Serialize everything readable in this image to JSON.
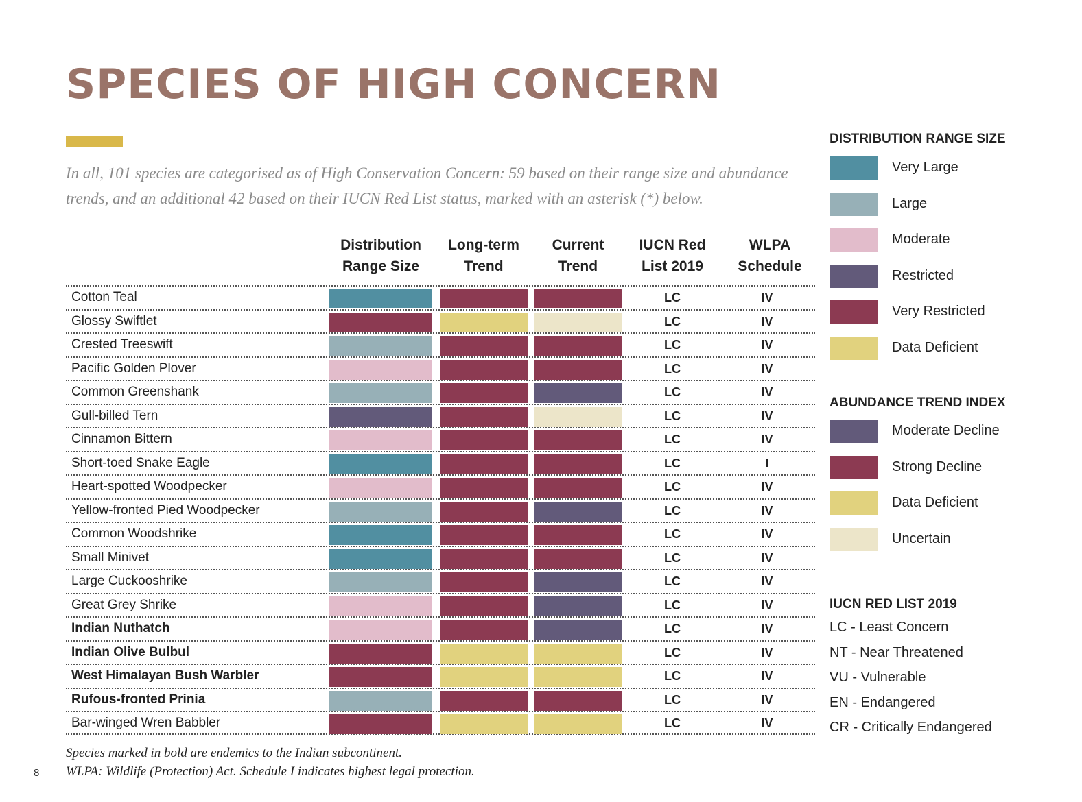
{
  "title": "SPECIES OF HIGH CONCERN",
  "intro_line1": "In all, 101 species are categorised as of High Conservation Concern: 59 based on their range size and abundance",
  "intro_line2": "trends, and an additional 42 based on their IUCN Red List status, marked with an asterisk (*) below.",
  "colors": {
    "very_large": "#518fa1",
    "large": "#97b0b7",
    "moderate": "#e2bccb",
    "restricted": "#625a7a",
    "very_restricted": "#8c3a52",
    "data_deficient": "#e1d27e",
    "moderate_decline": "#625a7a",
    "strong_decline": "#8c3a52",
    "uncertain": "#ece5c9",
    "title": "#9a7469",
    "accent": "#d9b84a"
  },
  "columns": {
    "range": [
      "Distribution",
      "Range Size"
    ],
    "longterm": [
      "Long-term",
      "Trend"
    ],
    "current": [
      "Current",
      "Trend"
    ],
    "iucn": [
      "IUCN Red",
      "List 2019"
    ],
    "wlpa": [
      "WLPA",
      "Schedule"
    ]
  },
  "species": [
    {
      "name": "Cotton Teal",
      "bold": false,
      "range": "very_large",
      "longterm": "strong_decline",
      "current": "strong_decline",
      "iucn": "LC",
      "wlpa": "IV"
    },
    {
      "name": "Glossy Swiftlet",
      "bold": false,
      "range": "very_restricted",
      "longterm": "data_deficient",
      "current": "uncertain",
      "iucn": "LC",
      "wlpa": "IV"
    },
    {
      "name": "Crested Treeswift",
      "bold": false,
      "range": "large",
      "longterm": "strong_decline",
      "current": "strong_decline",
      "iucn": "LC",
      "wlpa": "IV"
    },
    {
      "name": "Pacific Golden Plover",
      "bold": false,
      "range": "moderate",
      "longterm": "strong_decline",
      "current": "strong_decline",
      "iucn": "LC",
      "wlpa": "IV"
    },
    {
      "name": "Common Greenshank",
      "bold": false,
      "range": "large",
      "longterm": "strong_decline",
      "current": "moderate_decline",
      "iucn": "LC",
      "wlpa": "IV"
    },
    {
      "name": "Gull-billed Tern",
      "bold": false,
      "range": "restricted",
      "longterm": "strong_decline",
      "current": "uncertain",
      "iucn": "LC",
      "wlpa": "IV"
    },
    {
      "name": "Cinnamon Bittern",
      "bold": false,
      "range": "moderate",
      "longterm": "strong_decline",
      "current": "strong_decline",
      "iucn": "LC",
      "wlpa": "IV"
    },
    {
      "name": "Short-toed Snake Eagle",
      "bold": false,
      "range": "very_large",
      "longterm": "strong_decline",
      "current": "strong_decline",
      "iucn": "LC",
      "wlpa": "I"
    },
    {
      "name": "Heart-spotted Woodpecker",
      "bold": false,
      "range": "moderate",
      "longterm": "strong_decline",
      "current": "strong_decline",
      "iucn": "LC",
      "wlpa": "IV"
    },
    {
      "name": "Yellow-fronted Pied Woodpecker",
      "bold": false,
      "range": "large",
      "longterm": "strong_decline",
      "current": "moderate_decline",
      "iucn": "LC",
      "wlpa": "IV"
    },
    {
      "name": "Common Woodshrike",
      "bold": false,
      "range": "very_large",
      "longterm": "strong_decline",
      "current": "strong_decline",
      "iucn": "LC",
      "wlpa": "IV"
    },
    {
      "name": "Small Minivet",
      "bold": false,
      "range": "very_large",
      "longterm": "strong_decline",
      "current": "strong_decline",
      "iucn": "LC",
      "wlpa": "IV"
    },
    {
      "name": "Large Cuckooshrike",
      "bold": false,
      "range": "large",
      "longterm": "strong_decline",
      "current": "moderate_decline",
      "iucn": "LC",
      "wlpa": "IV"
    },
    {
      "name": "Great Grey Shrike",
      "bold": false,
      "range": "moderate",
      "longterm": "strong_decline",
      "current": "moderate_decline",
      "iucn": "LC",
      "wlpa": "IV"
    },
    {
      "name": "Indian Nuthatch",
      "bold": true,
      "range": "moderate",
      "longterm": "strong_decline",
      "current": "moderate_decline",
      "iucn": "LC",
      "wlpa": "IV"
    },
    {
      "name": "Indian Olive Bulbul",
      "bold": true,
      "range": "very_restricted",
      "longterm": "data_deficient",
      "current": "data_deficient",
      "iucn": "LC",
      "wlpa": "IV"
    },
    {
      "name": "West Himalayan Bush Warbler",
      "bold": true,
      "range": "very_restricted",
      "longterm": "data_deficient",
      "current": "data_deficient",
      "iucn": "LC",
      "wlpa": "IV"
    },
    {
      "name": "Rufous-fronted Prinia",
      "bold": true,
      "range": "large",
      "longterm": "strong_decline",
      "current": "strong_decline",
      "iucn": "LC",
      "wlpa": "IV"
    },
    {
      "name": "Bar-winged Wren Babbler",
      "bold": false,
      "range": "very_restricted",
      "longterm": "data_deficient",
      "current": "data_deficient",
      "iucn": "LC",
      "wlpa": "IV"
    }
  ],
  "legend": {
    "range_title": "DISTRIBUTION RANGE SIZE",
    "range_items": [
      {
        "key": "very_large",
        "label": "Very Large"
      },
      {
        "key": "large",
        "label": "Large"
      },
      {
        "key": "moderate",
        "label": "Moderate"
      },
      {
        "key": "restricted",
        "label": "Restricted"
      },
      {
        "key": "very_restricted",
        "label": "Very Restricted"
      },
      {
        "key": "data_deficient",
        "label": "Data Deficient"
      }
    ],
    "trend_title": "ABUNDANCE TREND INDEX",
    "trend_items": [
      {
        "key": "moderate_decline",
        "label": "Moderate Decline"
      },
      {
        "key": "strong_decline",
        "label": "Strong Decline"
      },
      {
        "key": "data_deficient",
        "label": "Data Deficient"
      },
      {
        "key": "uncertain",
        "label": "Uncertain"
      }
    ],
    "iucn_title": "IUCN RED LIST 2019",
    "iucn_items": [
      "LC - Least Concern",
      "NT - Near Threatened",
      "VU - Vulnerable",
      "EN - Endangered",
      "CR - Critically Endangered"
    ]
  },
  "footnote1": "Species marked in bold are endemics to the Indian subcontinent.",
  "footnote2": "WLPA: Wildlife (Protection) Act. Schedule I indicates highest legal protection.",
  "page_number": "8"
}
